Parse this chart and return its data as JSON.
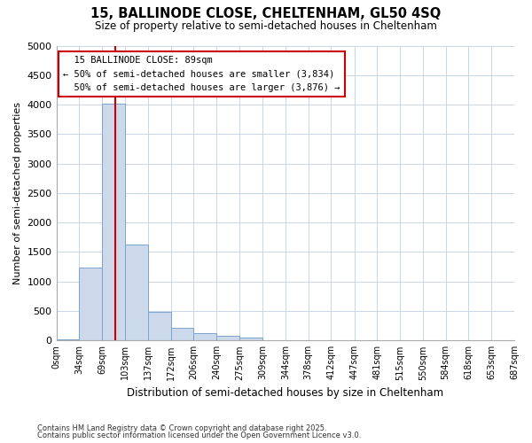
{
  "title_line1": "15, BALLINODE CLOSE, CHELTENHAM, GL50 4SQ",
  "title_line2": "Size of property relative to semi-detached houses in Cheltenham",
  "xlabel": "Distribution of semi-detached houses by size in Cheltenham",
  "ylabel": "Number of semi-detached properties",
  "property_size": 89,
  "property_label": "15 BALLINODE CLOSE: 89sqm",
  "pct_smaller": "50% of semi-detached houses are smaller (3,834)",
  "pct_larger": "50% of semi-detached houses are larger (3,876)",
  "bar_color": "#ccd9ea",
  "bar_edge_color": "#7aa3cc",
  "vline_color": "#cc0000",
  "grid_color": "#c8d4e8",
  "background_color": "#ffffff",
  "annotation_bg": "#ffffff",
  "annotation_border": "#cc0000",
  "bins": [
    0,
    34,
    69,
    103,
    137,
    172,
    206,
    240,
    275,
    309,
    344,
    378,
    412,
    447,
    481,
    515,
    550,
    584,
    618,
    653,
    687
  ],
  "bin_labels": [
    "0sqm",
    "34sqm",
    "69sqm",
    "103sqm",
    "137sqm",
    "172sqm",
    "206sqm",
    "240sqm",
    "275sqm",
    "309sqm",
    "344sqm",
    "378sqm",
    "412sqm",
    "447sqm",
    "481sqm",
    "515sqm",
    "550sqm",
    "584sqm",
    "618sqm",
    "653sqm",
    "687sqm"
  ],
  "counts": [
    20,
    1240,
    4020,
    1630,
    490,
    215,
    125,
    75,
    55,
    0,
    0,
    0,
    0,
    0,
    0,
    0,
    0,
    0,
    0,
    0
  ],
  "ylim": [
    0,
    5000
  ],
  "yticks": [
    0,
    500,
    1000,
    1500,
    2000,
    2500,
    3000,
    3500,
    4000,
    4500,
    5000
  ],
  "footer_line1": "Contains HM Land Registry data © Crown copyright and database right 2025.",
  "footer_line2": "Contains public sector information licensed under the Open Government Licence v3.0."
}
